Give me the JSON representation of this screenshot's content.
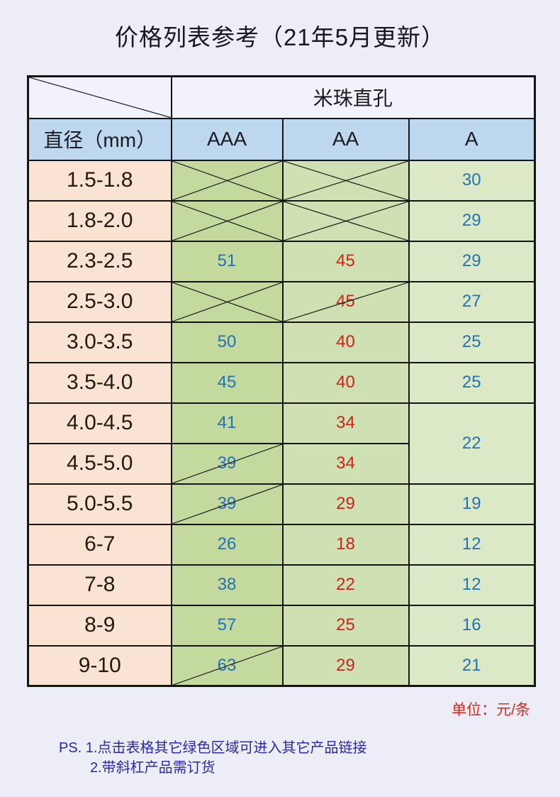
{
  "title": "价格列表参考（21年5月更新）",
  "table": {
    "category_header": "米珠直孔",
    "col_headers": [
      "直径（mm）",
      "AAA",
      "AA",
      "A"
    ],
    "rows": [
      {
        "label": "1.5-1.8",
        "aaa": {
          "value": "",
          "mark": "x"
        },
        "aa": {
          "value": "",
          "mark": "x"
        },
        "a": {
          "value": "30"
        }
      },
      {
        "label": "1.8-2.0",
        "aaa": {
          "value": "",
          "mark": "x"
        },
        "aa": {
          "value": "",
          "mark": "x"
        },
        "a": {
          "value": "29"
        }
      },
      {
        "label": "2.3-2.5",
        "aaa": {
          "value": "51"
        },
        "aa": {
          "value": "45"
        },
        "a": {
          "value": "29"
        }
      },
      {
        "label": "2.5-3.0",
        "aaa": {
          "value": "",
          "mark": "x"
        },
        "aa": {
          "value": "45",
          "mark": "slash"
        },
        "a": {
          "value": "27"
        }
      },
      {
        "label": "3.0-3.5",
        "aaa": {
          "value": "50"
        },
        "aa": {
          "value": "40"
        },
        "a": {
          "value": "25"
        }
      },
      {
        "label": "3.5-4.0",
        "aaa": {
          "value": "45"
        },
        "aa": {
          "value": "40"
        },
        "a": {
          "value": "25"
        }
      },
      {
        "label": "4.0-4.5",
        "aaa": {
          "value": "41"
        },
        "aa": {
          "value": "34"
        },
        "a": {
          "value": "22",
          "rowspan": 2
        }
      },
      {
        "label": "4.5-5.0",
        "aaa": {
          "value": "39",
          "mark": "slash"
        },
        "aa": {
          "value": "34"
        },
        "a": null
      },
      {
        "label": "5.0-5.5",
        "aaa": {
          "value": "39",
          "mark": "slash"
        },
        "aa": {
          "value": "29"
        },
        "a": {
          "value": "19"
        }
      },
      {
        "label": "6-7",
        "aaa": {
          "value": "26"
        },
        "aa": {
          "value": "18"
        },
        "a": {
          "value": "12"
        }
      },
      {
        "label": "7-8",
        "aaa": {
          "value": "38"
        },
        "aa": {
          "value": "22"
        },
        "a": {
          "value": "12"
        }
      },
      {
        "label": "8-9",
        "aaa": {
          "value": "57"
        },
        "aa": {
          "value": "25"
        },
        "a": {
          "value": "16"
        }
      },
      {
        "label": "9-10",
        "aaa": {
          "value": "63",
          "mark": "slash"
        },
        "aa": {
          "value": "29"
        },
        "a": {
          "value": "21"
        }
      }
    ]
  },
  "unit_label": "单位：元/条",
  "notes": [
    "PS. 1.点击表格其它绿色区域可进入其它产品链接",
    "2.带斜杠产品需订货"
  ],
  "colors": {
    "page_background": "#ededf8",
    "header_blue": "#bdd7ee",
    "label_peach": "#fbe3d4",
    "aaa_green": "#c4d99e",
    "aa_green": "#cfe0b2",
    "a_green": "#dbe9c6",
    "blue_price_text": "#2372b4",
    "red_price_text": "#cf2318",
    "unit_red": "#d8261a",
    "note_blue": "#2a2aa8",
    "border_black": "#141414"
  }
}
